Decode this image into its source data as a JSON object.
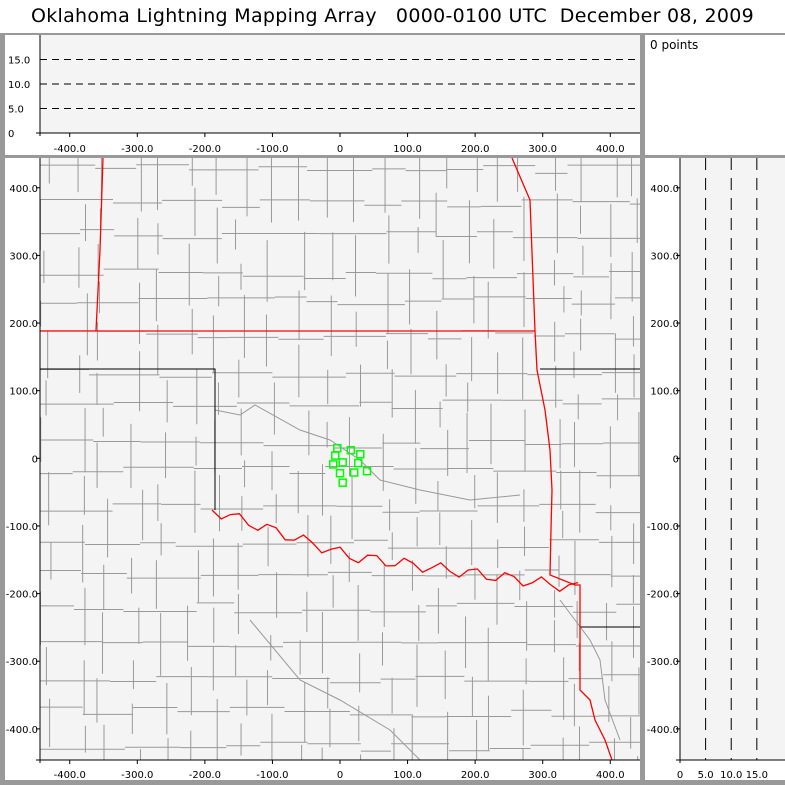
{
  "title": "Oklahoma Lightning Mapping Array   0000-0100 UTC  December 08, 2009",
  "points_label": "0 points",
  "colors": {
    "state_border": "#ff0000",
    "county": "#999999",
    "points": "#00ff00",
    "plot_bg": "#f4f4f4"
  },
  "chart_data": [
    {
      "type": "line",
      "panel": "altitude-vs-east-west",
      "x_ticks": [
        "-400.0",
        "-300.0",
        "-200.0",
        "-100.0",
        "0",
        "100.0",
        "200.0",
        "300.0",
        "400.0"
      ],
      "y_ticks": [
        "0",
        "5.0",
        "10.0",
        "15.0"
      ],
      "xlim": [
        -444,
        444
      ],
      "ylim": [
        0,
        20
      ],
      "grid": "dashed horizontal at 5, 10, 15"
    },
    {
      "type": "scatter",
      "panel": "plan-view-map",
      "x_ticks": [
        "-400.0",
        "-300.0",
        "-200.0",
        "-100.0",
        "0",
        "100.0",
        "200.0",
        "300.0",
        "400.0"
      ],
      "y_ticks": [
        "400.0",
        "300.0",
        "200.0",
        "100.0",
        "0",
        "-100.0",
        "-200.0",
        "-300.0",
        "-400.0"
      ],
      "xlim": [
        -444,
        444
      ],
      "ylim": [
        -446,
        444
      ],
      "points": [
        [
          -4,
          15
        ],
        [
          -7,
          4
        ],
        [
          16,
          12
        ],
        [
          30,
          6
        ],
        [
          -10,
          -9
        ],
        [
          4,
          -6
        ],
        [
          27,
          -7
        ],
        [
          0,
          -22
        ],
        [
          21,
          -21
        ],
        [
          40,
          -19
        ],
        [
          4,
          -36
        ]
      ],
      "marker": "hollow square"
    },
    {
      "type": "line",
      "panel": "north-south-vs-altitude",
      "x_ticks": [
        "0",
        "5.0",
        "10.0",
        "15.0"
      ],
      "y_ticks": [
        "400.0",
        "300.0",
        "200.0",
        "100.0",
        "0",
        "-100.0",
        "-200.0",
        "-300.0",
        "-400.0"
      ],
      "xlim": [
        0,
        20.5
      ],
      "ylim": [
        -446,
        444
      ],
      "grid": "dashed vertical at 5, 10, 15"
    }
  ]
}
